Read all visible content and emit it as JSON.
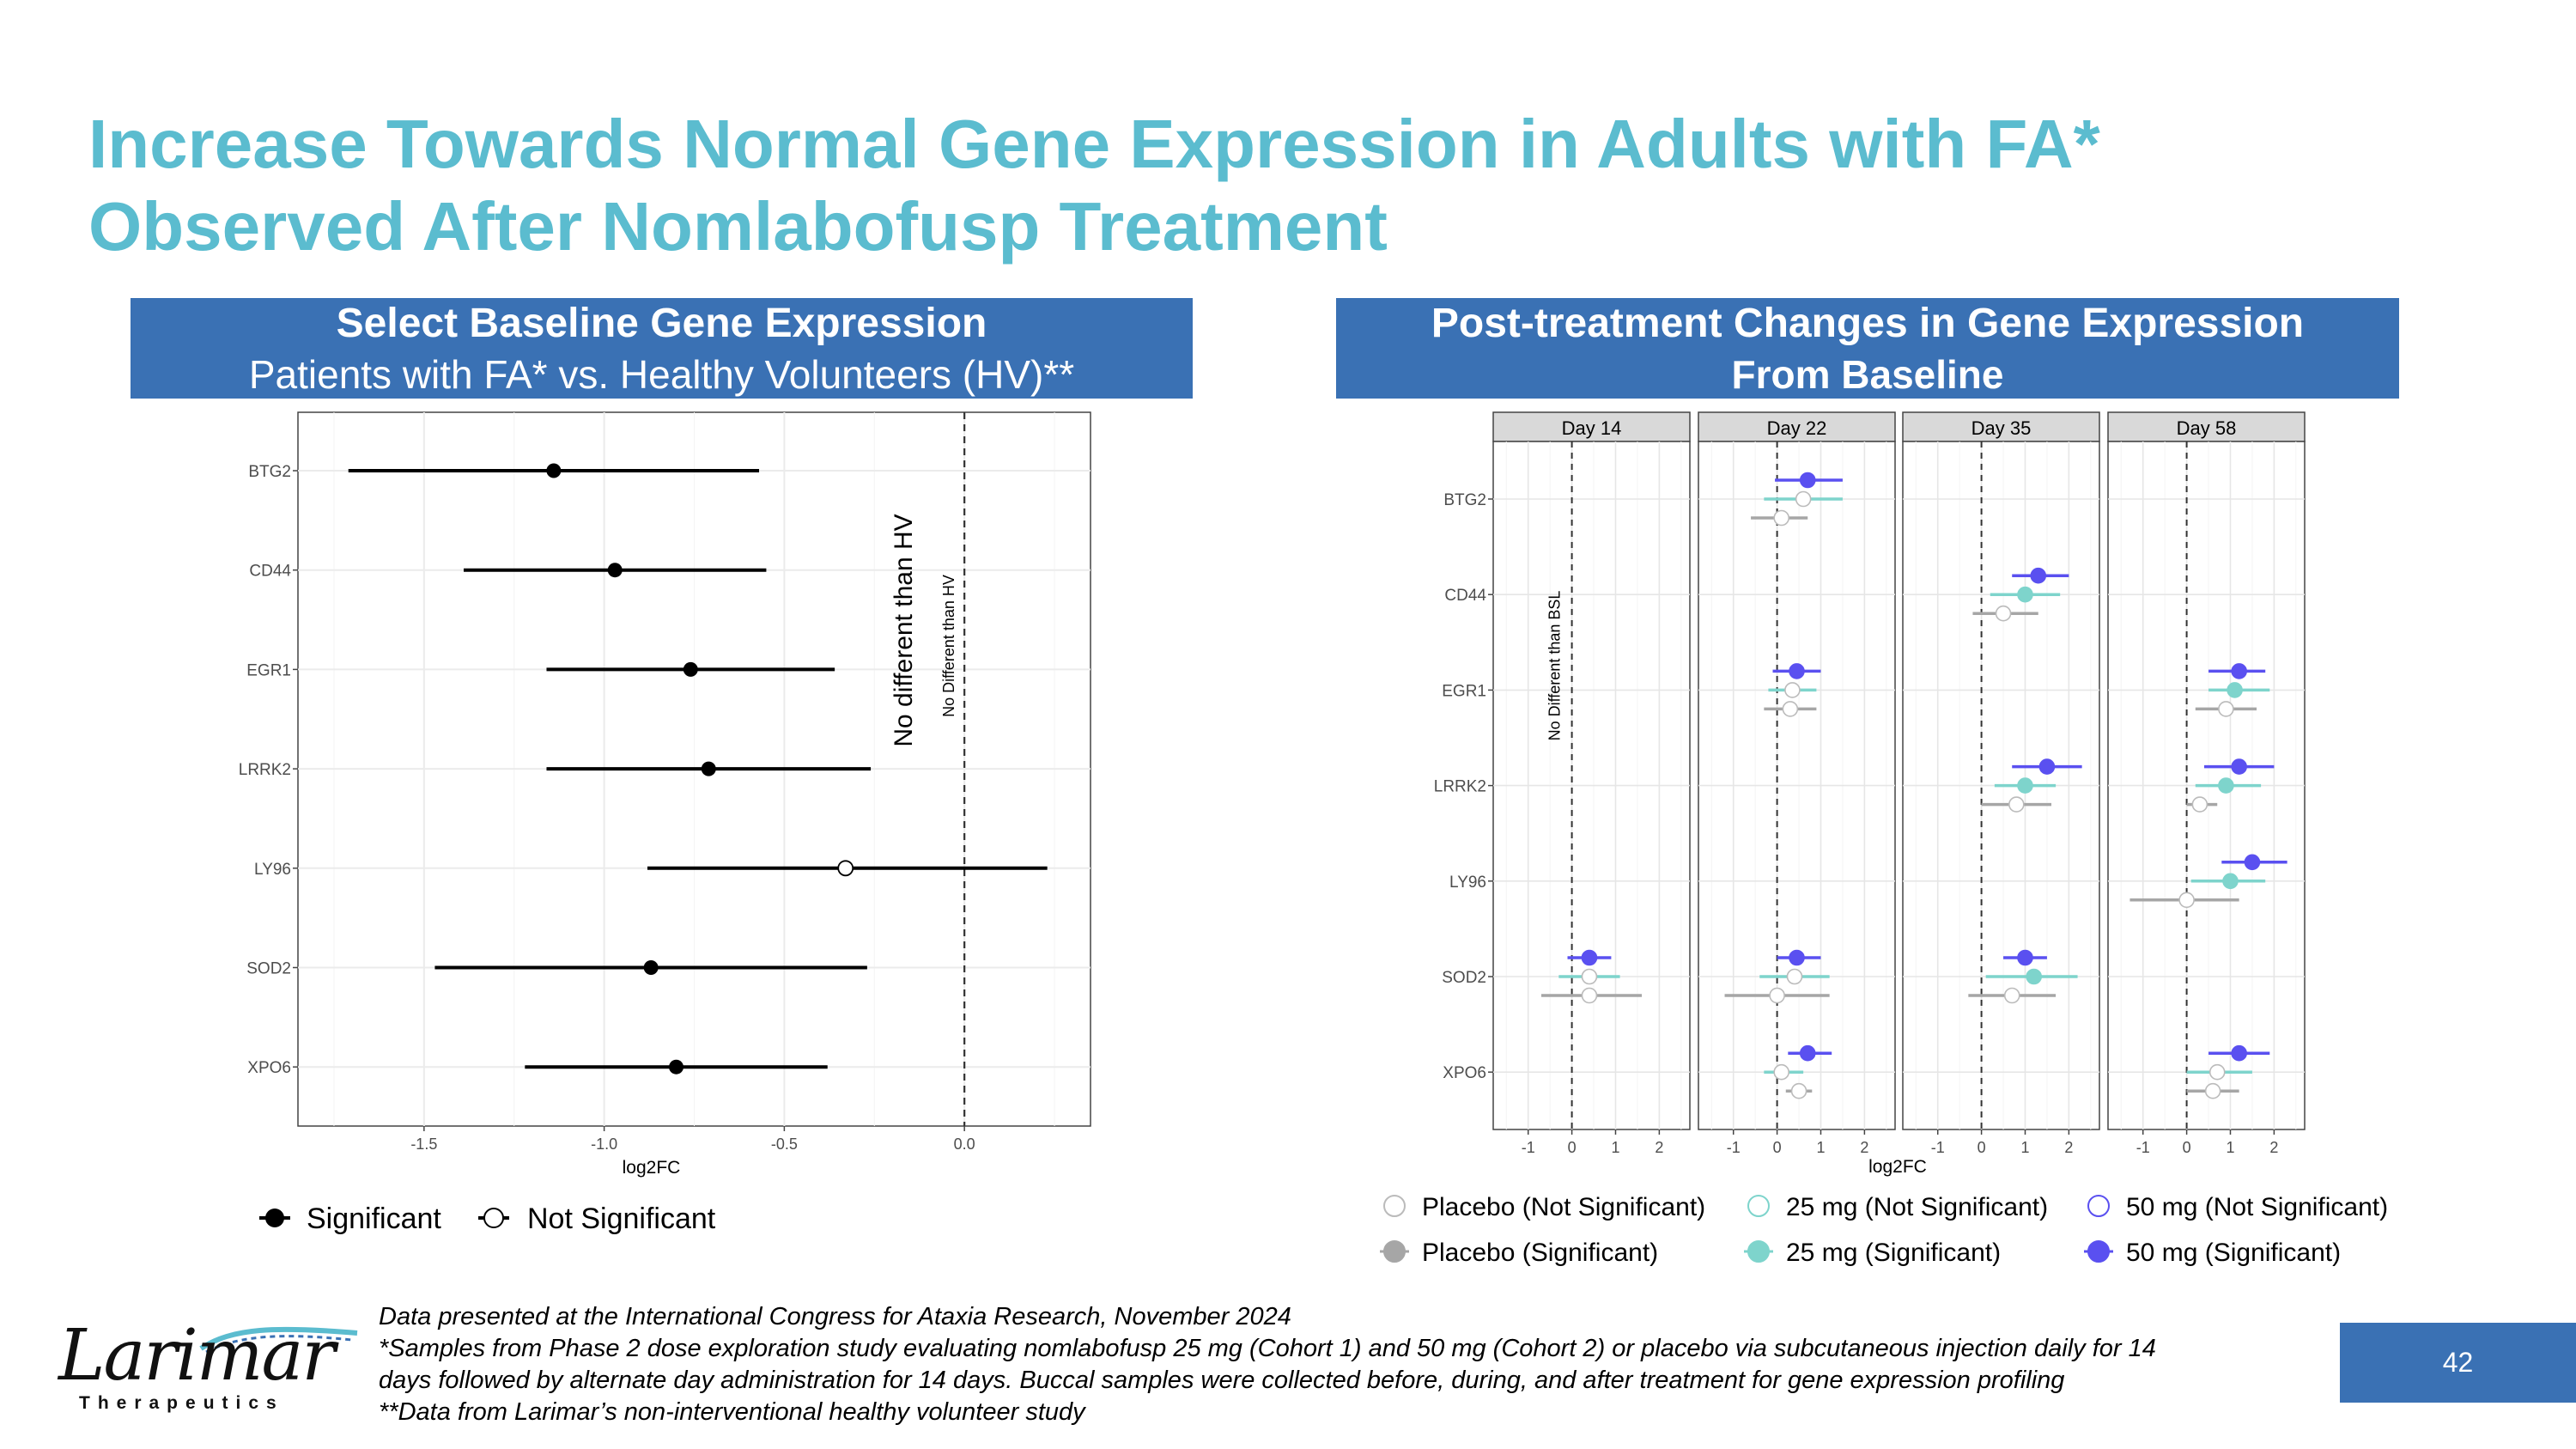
{
  "slide": {
    "title_line1": "Increase Towards Normal Gene Expression in Adults with FA*",
    "title_line2": "Observed After Nomlabofusp Treatment",
    "page_number": "42"
  },
  "left_panel": {
    "header_line1": "Select Baseline Gene Expression",
    "header_line2": "Patients with FA* vs. Healthy Volunteers (HV)**"
  },
  "right_panel": {
    "header_line1": "Post-treatment Changes in Gene Expression",
    "header_line2": "From Baseline"
  },
  "footnotes": {
    "line1": "Data presented at the International Congress for Ataxia Research, November 2024",
    "line2": "*Samples from Phase 2 dose exploration study evaluating nomlabofusp 25 mg (Cohort 1) and 50 mg (Cohort 2) or placebo via subcutaneous injection daily for 14",
    "line3": "days followed by alternate day administration for 14 days. Buccal samples were collected before, during, and after treatment for gene expression profiling",
    "line4": "**Data from Larimar’s non-interventional healthy volunteer study"
  },
  "logo": {
    "name": "Larimar",
    "subtitle": "Therapeutics"
  },
  "colors": {
    "title": "#5bbccf",
    "header_bg": "#3a71b4",
    "placebo": "#a6a6a6",
    "dose25": "#7ed4cc",
    "dose50": "#5a50f0"
  },
  "chart_data": [
    {
      "type": "scatter",
      "subtype": "forest-plot",
      "title": "Select Baseline Gene Expression",
      "xlabel": "log2FC",
      "ylabel": "",
      "xlim": [
        -1.85,
        0.35
      ],
      "xticks": [
        -1.5,
        -1.0,
        -0.5,
        0.0
      ],
      "xtick_labels": [
        "-1.5",
        "-1.0",
        "-0.5",
        "0.0"
      ],
      "reference_line": {
        "x": 0.0,
        "label": "No Different than HV"
      },
      "annotation": "No different than HV",
      "legend": [
        "Significant",
        "Not Significant"
      ],
      "legend_position": "bottom-left",
      "genes": [
        "BTG2",
        "CD44",
        "EGR1",
        "LRRK2",
        "LY96",
        "SOD2",
        "XPO6"
      ],
      "points": [
        {
          "gene": "BTG2",
          "estimate": -1.14,
          "lower": -1.71,
          "upper": -0.57,
          "significant": true
        },
        {
          "gene": "CD44",
          "estimate": -0.97,
          "lower": -1.39,
          "upper": -0.55,
          "significant": true
        },
        {
          "gene": "EGR1",
          "estimate": -0.76,
          "lower": -1.16,
          "upper": -0.36,
          "significant": true
        },
        {
          "gene": "LRRK2",
          "estimate": -0.71,
          "lower": -1.16,
          "upper": -0.26,
          "significant": true
        },
        {
          "gene": "LY96",
          "estimate": -0.33,
          "lower": -0.88,
          "upper": 0.23,
          "significant": false
        },
        {
          "gene": "SOD2",
          "estimate": -0.87,
          "lower": -1.47,
          "upper": -0.27,
          "significant": true
        },
        {
          "gene": "XPO6",
          "estimate": -0.8,
          "lower": -1.22,
          "upper": -0.38,
          "significant": true
        }
      ]
    },
    {
      "type": "scatter",
      "subtype": "faceted-forest-plot",
      "title": "Post-treatment Changes in Gene Expression From Baseline",
      "xlabel": "log2FC",
      "xlim": [
        -1.8,
        2.7
      ],
      "xticks": [
        -1,
        0,
        1,
        2
      ],
      "xtick_labels": [
        "-1",
        "0",
        "1",
        "2"
      ],
      "reference_line": {
        "x": 0,
        "label": "No Different than BSL"
      },
      "facets": [
        "Day 14",
        "Day 22",
        "Day 35",
        "Day 58"
      ],
      "genes": [
        "BTG2",
        "CD44",
        "EGR1",
        "LRRK2",
        "LY96",
        "SOD2",
        "XPO6"
      ],
      "groups": [
        "placebo",
        "25mg",
        "50mg"
      ],
      "legend": [
        {
          "label": "Placebo (Not Significant)",
          "group": "placebo",
          "significant": false
        },
        {
          "label": "25 mg (Not Significant)",
          "group": "25mg",
          "significant": false
        },
        {
          "label": "50 mg (Not Significant)",
          "group": "50mg",
          "significant": false
        },
        {
          "label": "Placebo (Significant)",
          "group": "placebo",
          "significant": true
        },
        {
          "label": "25 mg (Significant)",
          "group": "25mg",
          "significant": true
        },
        {
          "label": "50 mg (Significant)",
          "group": "50mg",
          "significant": true
        }
      ],
      "points": [
        {
          "facet": "Day 14",
          "gene": "SOD2",
          "group": "50mg",
          "estimate": 0.4,
          "lower": -0.1,
          "upper": 0.9,
          "significant": true
        },
        {
          "facet": "Day 14",
          "gene": "SOD2",
          "group": "25mg",
          "estimate": 0.4,
          "lower": -0.3,
          "upper": 1.1,
          "significant": false
        },
        {
          "facet": "Day 14",
          "gene": "SOD2",
          "group": "placebo",
          "estimate": 0.4,
          "lower": -0.7,
          "upper": 1.6,
          "significant": false
        },
        {
          "facet": "Day 22",
          "gene": "BTG2",
          "group": "50mg",
          "estimate": 0.7,
          "lower": -0.05,
          "upper": 1.5,
          "significant": true
        },
        {
          "facet": "Day 22",
          "gene": "BTG2",
          "group": "25mg",
          "estimate": 0.6,
          "lower": -0.3,
          "upper": 1.5,
          "significant": false
        },
        {
          "facet": "Day 22",
          "gene": "BTG2",
          "group": "placebo",
          "estimate": 0.1,
          "lower": -0.6,
          "upper": 0.7,
          "significant": false
        },
        {
          "facet": "Day 22",
          "gene": "EGR1",
          "group": "50mg",
          "estimate": 0.45,
          "lower": -0.1,
          "upper": 1.0,
          "significant": true
        },
        {
          "facet": "Day 22",
          "gene": "EGR1",
          "group": "25mg",
          "estimate": 0.35,
          "lower": -0.2,
          "upper": 0.9,
          "significant": false
        },
        {
          "facet": "Day 22",
          "gene": "EGR1",
          "group": "placebo",
          "estimate": 0.3,
          "lower": -0.3,
          "upper": 0.9,
          "significant": false
        },
        {
          "facet": "Day 22",
          "gene": "SOD2",
          "group": "50mg",
          "estimate": 0.45,
          "lower": 0.0,
          "upper": 1.0,
          "significant": true
        },
        {
          "facet": "Day 22",
          "gene": "SOD2",
          "group": "25mg",
          "estimate": 0.4,
          "lower": -0.4,
          "upper": 1.2,
          "significant": false
        },
        {
          "facet": "Day 22",
          "gene": "SOD2",
          "group": "placebo",
          "estimate": 0.0,
          "lower": -1.2,
          "upper": 1.2,
          "significant": false
        },
        {
          "facet": "Day 22",
          "gene": "XPO6",
          "group": "50mg",
          "estimate": 0.7,
          "lower": 0.25,
          "upper": 1.25,
          "significant": true
        },
        {
          "facet": "Day 22",
          "gene": "XPO6",
          "group": "25mg",
          "estimate": 0.1,
          "lower": -0.3,
          "upper": 0.6,
          "significant": false
        },
        {
          "facet": "Day 22",
          "gene": "XPO6",
          "group": "placebo",
          "estimate": 0.5,
          "lower": 0.2,
          "upper": 0.8,
          "significant": false
        },
        {
          "facet": "Day 35",
          "gene": "CD44",
          "group": "50mg",
          "estimate": 1.3,
          "lower": 0.7,
          "upper": 2.0,
          "significant": true
        },
        {
          "facet": "Day 35",
          "gene": "CD44",
          "group": "25mg",
          "estimate": 1.0,
          "lower": 0.2,
          "upper": 1.8,
          "significant": true
        },
        {
          "facet": "Day 35",
          "gene": "CD44",
          "group": "placebo",
          "estimate": 0.5,
          "lower": -0.2,
          "upper": 1.3,
          "significant": false
        },
        {
          "facet": "Day 35",
          "gene": "EGR1",
          "group": "50mg",
          "estimate": null,
          "lower": null,
          "upper": null,
          "significant": true
        },
        {
          "facet": "Day 35",
          "gene": "LRRK2",
          "group": "50mg",
          "estimate": 1.5,
          "lower": 0.7,
          "upper": 2.3,
          "significant": true
        },
        {
          "facet": "Day 35",
          "gene": "LRRK2",
          "group": "25mg",
          "estimate": 1.0,
          "lower": 0.3,
          "upper": 1.7,
          "significant": true
        },
        {
          "facet": "Day 35",
          "gene": "LRRK2",
          "group": "placebo",
          "estimate": 0.8,
          "lower": 0.0,
          "upper": 1.6,
          "significant": false
        },
        {
          "facet": "Day 35",
          "gene": "SOD2",
          "group": "50mg",
          "estimate": 1.0,
          "lower": 0.5,
          "upper": 1.5,
          "significant": true
        },
        {
          "facet": "Day 35",
          "gene": "SOD2",
          "group": "25mg",
          "estimate": 1.2,
          "lower": 0.1,
          "upper": 2.2,
          "significant": true
        },
        {
          "facet": "Day 35",
          "gene": "SOD2",
          "group": "placebo",
          "estimate": 0.7,
          "lower": -0.3,
          "upper": 1.7,
          "significant": false
        },
        {
          "facet": "Day 58",
          "gene": "EGR1",
          "group": "50mg",
          "estimate": 1.2,
          "lower": 0.5,
          "upper": 1.8,
          "significant": true
        },
        {
          "facet": "Day 58",
          "gene": "EGR1",
          "group": "25mg",
          "estimate": 1.1,
          "lower": 0.5,
          "upper": 1.9,
          "significant": true
        },
        {
          "facet": "Day 58",
          "gene": "EGR1",
          "group": "placebo",
          "estimate": 0.9,
          "lower": 0.2,
          "upper": 1.6,
          "significant": false
        },
        {
          "facet": "Day 58",
          "gene": "LRRK2",
          "group": "50mg",
          "estimate": 1.2,
          "lower": 0.4,
          "upper": 2.0,
          "significant": true
        },
        {
          "facet": "Day 58",
          "gene": "LRRK2",
          "group": "25mg",
          "estimate": 0.9,
          "lower": 0.2,
          "upper": 1.7,
          "significant": true
        },
        {
          "facet": "Day 58",
          "gene": "LRRK2",
          "group": "placebo",
          "estimate": 0.3,
          "lower": 0.0,
          "upper": 0.7,
          "significant": false
        },
        {
          "facet": "Day 58",
          "gene": "LY96",
          "group": "50mg",
          "estimate": 1.5,
          "lower": 0.8,
          "upper": 2.3,
          "significant": true
        },
        {
          "facet": "Day 58",
          "gene": "LY96",
          "group": "25mg",
          "estimate": 1.0,
          "lower": 0.1,
          "upper": 1.8,
          "significant": true
        },
        {
          "facet": "Day 58",
          "gene": "LY96",
          "group": "placebo",
          "estimate": 0.0,
          "lower": -1.3,
          "upper": 1.2,
          "significant": false
        },
        {
          "facet": "Day 58",
          "gene": "XPO6",
          "group": "50mg",
          "estimate": 1.2,
          "lower": 0.5,
          "upper": 1.9,
          "significant": true
        },
        {
          "facet": "Day 58",
          "gene": "XPO6",
          "group": "25mg",
          "estimate": 0.7,
          "lower": 0.0,
          "upper": 1.5,
          "significant": false
        },
        {
          "facet": "Day 58",
          "gene": "XPO6",
          "group": "placebo",
          "estimate": 0.6,
          "lower": 0.0,
          "upper": 1.2,
          "significant": false
        }
      ]
    }
  ]
}
